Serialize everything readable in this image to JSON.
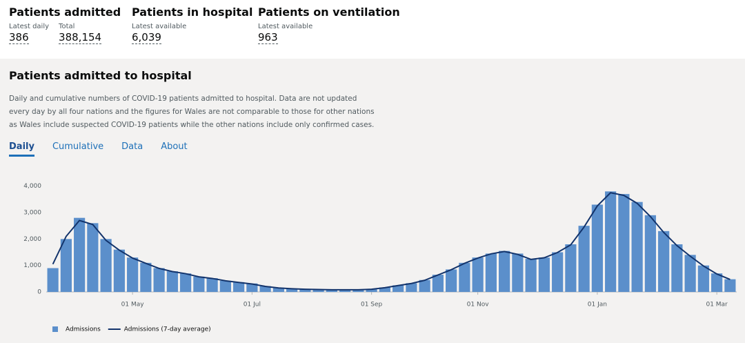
{
  "header": {
    "stats": [
      {
        "title": "Patients admitted",
        "items": [
          {
            "label": "Latest daily",
            "value": "386"
          },
          {
            "label": "Total",
            "value": "388,154"
          }
        ]
      },
      {
        "title": "Patients in hospital",
        "items": [
          {
            "label": "Latest available",
            "value": "6,039"
          }
        ]
      },
      {
        "title": "Patients on ventilation",
        "items": [
          {
            "label": "Latest available",
            "value": "963"
          }
        ]
      }
    ]
  },
  "card": {
    "title": "Patients admitted to hospital",
    "description": "Daily and cumulative numbers of COVID-19 patients admitted to hospital. Data are not updated every day by all four nations and the figures for Wales are not comparable to those for other nations as Wales include suspected COVID-19 patients while the other nations include only confirmed cases.",
    "tabs": [
      "Daily",
      "Cumulative",
      "Data",
      "About"
    ]
  },
  "chart_data": {
    "type": "bar",
    "categories": [
      null,
      null,
      null,
      null,
      null,
      null,
      "01 May",
      null,
      null,
      null,
      null,
      null,
      null,
      null,
      null,
      "01 Jul",
      null,
      null,
      null,
      null,
      null,
      null,
      null,
      null,
      "01 Sep",
      null,
      null,
      null,
      null,
      null,
      null,
      null,
      "01 Nov",
      null,
      null,
      null,
      null,
      null,
      null,
      null,
      null,
      "01 Jan",
      null,
      null,
      null,
      null,
      null,
      null,
      null,
      null,
      "01 Mar",
      null
    ],
    "series": [
      {
        "name": "Admissions",
        "type": "bar",
        "color": "#5b8fcb",
        "values": [
          900,
          2000,
          2800,
          2600,
          2000,
          1600,
          1300,
          1100,
          900,
          780,
          700,
          580,
          520,
          420,
          370,
          320,
          220,
          160,
          130,
          110,
          90,
          80,
          80,
          80,
          100,
          170,
          250,
          330,
          450,
          650,
          850,
          1100,
          1300,
          1450,
          1550,
          1450,
          1250,
          1300,
          1500,
          1800,
          2500,
          3300,
          3800,
          3700,
          3400,
          2900,
          2300,
          1800,
          1400,
          1000,
          700,
          480
        ]
      },
      {
        "name": "Admissions (7-day average)",
        "type": "line",
        "color": "#12336b",
        "values": [
          1050,
          2100,
          2700,
          2550,
          1950,
          1580,
          1280,
          1080,
          890,
          770,
          690,
          570,
          510,
          420,
          360,
          300,
          210,
          150,
          120,
          100,
          90,
          80,
          80,
          80,
          100,
          160,
          240,
          320,
          440,
          640,
          840,
          1080,
          1280,
          1440,
          1530,
          1420,
          1230,
          1290,
          1490,
          1780,
          2450,
          3250,
          3750,
          3650,
          3350,
          2850,
          2250,
          1750,
          1350,
          980,
          680,
          470
        ]
      }
    ],
    "ylim": [
      0,
      4200
    ],
    "yticks": [
      0,
      {
        "value": 1000,
        "label": "1,000"
      },
      {
        "value": 2000,
        "label": "2,000"
      },
      {
        "value": 3000,
        "label": "3,000"
      },
      {
        "value": 4000,
        "label": "4,000"
      }
    ],
    "grid": false
  }
}
